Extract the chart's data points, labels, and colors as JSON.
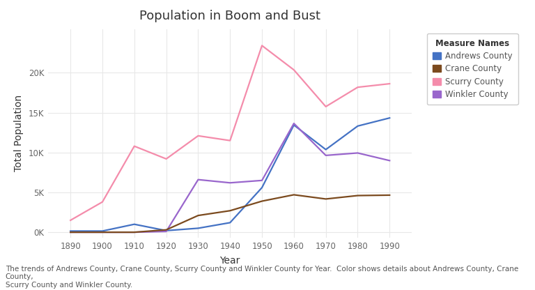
{
  "title": "Population in Boom and Bust",
  "xlabel": "Year",
  "ylabel": "Total Population",
  "caption": "The trends of Andrews County, Crane County, Scurry County and Winkler County for Year.  Color shows details about Andrews County, Crane County,\nScurry County and Winkler County.",
  "legend_title": "Measure Names",
  "years": [
    1890,
    1900,
    1910,
    1920,
    1930,
    1940,
    1950,
    1960,
    1970,
    1980,
    1990
  ],
  "andrews": [
    150,
    150,
    1000,
    200,
    500,
    1200,
    5600,
    13450,
    10372,
    13323,
    14338
  ],
  "crane": [
    0,
    0,
    0,
    300,
    2100,
    2700,
    3900,
    4699,
    4172,
    4600,
    4652
  ],
  "scurry": [
    1500,
    3800,
    10800,
    9200,
    12100,
    11500,
    23421,
    20369,
    15760,
    18192,
    18634
  ],
  "winkler": [
    0,
    0,
    0,
    100,
    6600,
    6200,
    6500,
    13652,
    9640,
    9944,
    8988
  ],
  "andrews_color": "#4472C4",
  "crane_color": "#7B4A1E",
  "scurry_color": "#F48CAB",
  "winkler_color": "#9966CC",
  "bg_color": "#FFFFFF",
  "plot_bg_color": "#FFFFFF",
  "grid_color": "#E8E8E8",
  "line_width": 1.6,
  "yticks": [
    0,
    5000,
    10000,
    15000,
    20000
  ],
  "xticks": [
    1890,
    1900,
    1910,
    1920,
    1930,
    1940,
    1950,
    1960,
    1970,
    1980,
    1990
  ]
}
